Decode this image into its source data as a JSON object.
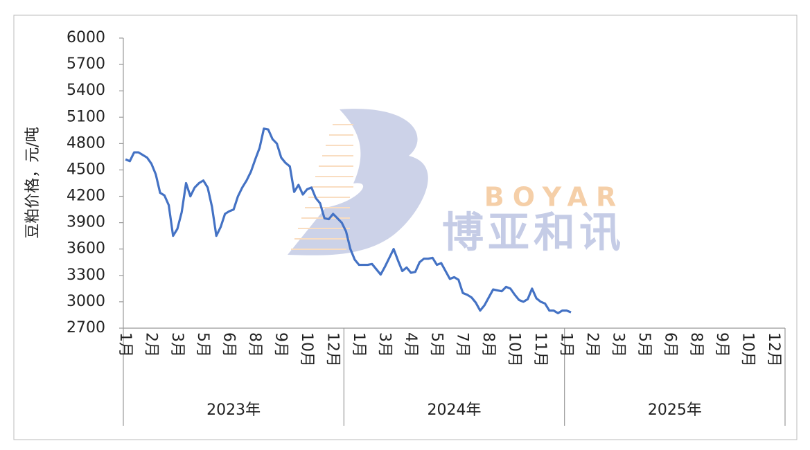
{
  "chart_data": {
    "type": "line",
    "y_label": "豆粕价格，元/吨",
    "watermark": {
      "latin": "BOYAR",
      "chinese": "博亚和讯"
    },
    "groups": [
      {
        "label": "2023年",
        "categories": [
          "1月",
          null,
          null,
          null,
          null,
          null,
          "2月",
          null,
          null,
          null,
          null,
          null,
          "3月",
          null,
          null,
          null,
          null,
          null,
          "5月",
          null,
          null,
          null,
          null,
          null,
          "6月",
          null,
          null,
          null,
          null,
          null,
          "8月",
          null,
          null,
          null,
          null,
          null,
          "9月",
          null,
          null,
          null,
          null,
          null,
          "10月",
          null,
          null,
          null,
          null,
          null,
          "12月",
          null,
          null
        ]
      },
      {
        "label": "2024年",
        "categories": [
          null,
          null,
          null,
          "1月",
          null,
          null,
          null,
          null,
          null,
          "3月",
          null,
          null,
          null,
          null,
          null,
          "4月",
          null,
          null,
          null,
          null,
          null,
          "5月",
          null,
          null,
          null,
          null,
          null,
          "7月",
          null,
          null,
          null,
          null,
          null,
          "8月",
          null,
          null,
          null,
          null,
          null,
          "10月",
          null,
          null,
          null,
          null,
          null,
          "11月",
          null,
          null,
          null,
          null,
          null
        ]
      },
      {
        "label": "2025年",
        "categories": [
          "1月",
          null,
          null,
          null,
          null,
          null,
          "2月",
          null,
          null,
          null,
          null,
          null,
          "3月",
          null,
          null,
          null,
          null,
          null,
          "5月",
          null,
          null,
          null,
          null,
          null,
          "6月",
          null,
          null,
          null,
          null,
          null,
          "8月",
          null,
          null,
          null,
          null,
          null,
          "9月",
          null,
          null,
          null,
          null,
          null,
          "10月",
          null,
          null,
          null,
          null,
          null,
          "12月",
          null,
          null
        ]
      }
    ],
    "series": [
      {
        "color": "#4472c4",
        "values": [
          4620,
          4600,
          4700,
          4700,
          4670,
          4640,
          4570,
          4450,
          4240,
          4210,
          4100,
          3750,
          3830,
          4020,
          4350,
          4200,
          4300,
          4350,
          4380,
          4300,
          4080,
          3750,
          3850,
          4000,
          4030,
          4050,
          4200,
          4300,
          4380,
          4480,
          4620,
          4750,
          4970,
          4960,
          4850,
          4800,
          4640,
          4580,
          4540,
          4250,
          4330,
          4220,
          4280,
          4300,
          4180,
          4120,
          3950,
          3940,
          4000,
          3950,
          3900,
          3800,
          3600,
          3480,
          3420,
          3420,
          3420,
          3430,
          3370,
          3310,
          3400,
          3500,
          3600,
          3470,
          3350,
          3390,
          3330,
          3340,
          3450,
          3490,
          3490,
          3500,
          3420,
          3440,
          3350,
          3260,
          3280,
          3250,
          3100,
          3080,
          3050,
          2990,
          2900,
          2960,
          3050,
          3140,
          3130,
          3120,
          3170,
          3150,
          3080,
          3020,
          3000,
          3030,
          3150,
          3040,
          3000,
          2980,
          2900,
          2900,
          2870,
          2900,
          2900,
          2880,
          null,
          null,
          null,
          null,
          null,
          null,
          null,
          null,
          null,
          null,
          null,
          null,
          null,
          null,
          null,
          null,
          null,
          null,
          null,
          null,
          null,
          null,
          null,
          null,
          null,
          null,
          null,
          null,
          null,
          null,
          null,
          null,
          null,
          null,
          null,
          null,
          null,
          null,
          null,
          null,
          null,
          null,
          null,
          null,
          null,
          null,
          null,
          null,
          null
        ]
      }
    ],
    "ylim": [
      2700,
      6000
    ],
    "yticks": [
      2700,
      3000,
      3300,
      3600,
      3900,
      4200,
      4500,
      4800,
      5100,
      5400,
      5700,
      6000
    ],
    "grid": false
  }
}
